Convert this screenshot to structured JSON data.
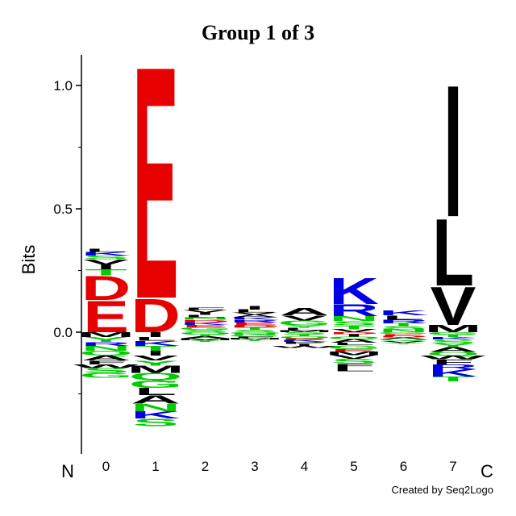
{
  "chart_data": {
    "type": "sequence-logo",
    "title": "Group 1 of 3",
    "ylabel": "Bits",
    "ylim": [
      -0.5,
      1.12
    ],
    "yticks": [
      0.0,
      0.5,
      1.0
    ],
    "ytick_labels": [
      "0.0",
      "0.5",
      "1.0"
    ],
    "positions": [
      "0",
      "1",
      "2",
      "3",
      "4",
      "5",
      "6",
      "7"
    ],
    "n_terminus_label": "N",
    "c_terminus_label": "C",
    "credit": "Created by Seq2Logo",
    "colors": {
      "acidic": "#e60000",
      "basic": "#0000e6",
      "polar": "#00cc00",
      "hydrophobic": "#000000",
      "other": "#800080"
    },
    "columns": [
      {
        "position": "0",
        "positive": [
          {
            "letter": "E",
            "bits": 0.13
          },
          {
            "letter": "D",
            "bits": 0.1
          },
          {
            "letter": "T",
            "bits": 0.025
          },
          {
            "letter": "I",
            "bits": 0.02
          },
          {
            "letter": "V",
            "bits": 0.02
          },
          {
            "letter": "S",
            "bits": 0.015
          },
          {
            "letter": "K",
            "bits": 0.015
          },
          {
            "letter": "L",
            "bits": 0.012
          }
        ],
        "negative": [
          {
            "letter": "M",
            "bits": 0.02
          },
          {
            "letter": "Y",
            "bits": 0.02
          },
          {
            "letter": "R",
            "bits": 0.015
          },
          {
            "letter": "N",
            "bits": 0.02
          },
          {
            "letter": "Q",
            "bits": 0.02
          },
          {
            "letter": "A",
            "bits": 0.02
          },
          {
            "letter": "F",
            "bits": 0.015
          },
          {
            "letter": "W",
            "bits": 0.015
          },
          {
            "letter": "S",
            "bits": 0.02
          },
          {
            "letter": "G",
            "bits": 0.02
          }
        ]
      },
      {
        "position": "1",
        "positive": [
          {
            "letter": "D",
            "bits": 0.14
          },
          {
            "letter": "E",
            "bits": 0.97
          }
        ],
        "negative": [
          {
            "letter": "I",
            "bits": 0.02
          },
          {
            "letter": "L",
            "bits": 0.015
          },
          {
            "letter": "K",
            "bits": 0.02
          },
          {
            "letter": "T",
            "bits": 0.02
          },
          {
            "letter": "I",
            "bits": 0.02
          },
          {
            "letter": "V",
            "bits": 0.02
          },
          {
            "letter": "Y",
            "bits": 0.02
          },
          {
            "letter": "M",
            "bits": 0.03
          },
          {
            "letter": "Q",
            "bits": 0.03
          },
          {
            "letter": "G",
            "bits": 0.03
          },
          {
            "letter": "L",
            "bits": 0.03
          },
          {
            "letter": "A",
            "bits": 0.035
          },
          {
            "letter": "N",
            "bits": 0.03
          },
          {
            "letter": "K",
            "bits": 0.03
          },
          {
            "letter": "S",
            "bits": 0.03
          }
        ]
      },
      {
        "position": "2",
        "positive": [
          {
            "letter": "S",
            "bits": 0.01
          },
          {
            "letter": "G",
            "bits": 0.01
          },
          {
            "letter": "E",
            "bits": 0.01
          },
          {
            "letter": "K",
            "bits": 0.01
          },
          {
            "letter": "D",
            "bits": 0.01
          },
          {
            "letter": "N",
            "bits": 0.01
          },
          {
            "letter": "L",
            "bits": 0.01
          },
          {
            "letter": "I",
            "bits": 0.01
          },
          {
            "letter": "V",
            "bits": 0.01
          },
          {
            "letter": "F",
            "bits": 0.01
          }
        ],
        "negative": [
          {
            "letter": "Q",
            "bits": 0.008
          },
          {
            "letter": "T",
            "bits": 0.008
          },
          {
            "letter": "A",
            "bits": 0.008
          },
          {
            "letter": "M",
            "bits": 0.008
          },
          {
            "letter": "Y",
            "bits": 0.008
          }
        ]
      },
      {
        "position": "3",
        "positive": [
          {
            "letter": "S",
            "bits": 0.01
          },
          {
            "letter": "T",
            "bits": 0.01
          },
          {
            "letter": "D",
            "bits": 0.01
          },
          {
            "letter": "E",
            "bits": 0.01
          },
          {
            "letter": "R",
            "bits": 0.01
          },
          {
            "letter": "K",
            "bits": 0.01
          },
          {
            "letter": "A",
            "bits": 0.01
          },
          {
            "letter": "V",
            "bits": 0.01
          },
          {
            "letter": "L",
            "bits": 0.012
          },
          {
            "letter": "I",
            "bits": 0.015
          }
        ],
        "negative": [
          {
            "letter": "Q",
            "bits": 0.006
          },
          {
            "letter": "N",
            "bits": 0.006
          },
          {
            "letter": "G",
            "bits": 0.006
          },
          {
            "letter": "F",
            "bits": 0.006
          },
          {
            "letter": "M",
            "bits": 0.006
          },
          {
            "letter": "Y",
            "bits": 0.006
          }
        ]
      },
      {
        "position": "4",
        "positive": [
          {
            "letter": "M",
            "bits": 0.008
          },
          {
            "letter": "L",
            "bits": 0.01
          },
          {
            "letter": "Y",
            "bits": 0.01
          },
          {
            "letter": "G",
            "bits": 0.02
          },
          {
            "letter": "V",
            "bits": 0.02
          },
          {
            "letter": "A",
            "bits": 0.03
          }
        ],
        "negative": [
          {
            "letter": "S",
            "bits": 0.008
          },
          {
            "letter": "T",
            "bits": 0.008
          },
          {
            "letter": "Q",
            "bits": 0.008
          },
          {
            "letter": "E",
            "bits": 0.008
          },
          {
            "letter": "K",
            "bits": 0.008
          },
          {
            "letter": "P",
            "bits": 0.008
          },
          {
            "letter": "I",
            "bits": 0.008
          },
          {
            "letter": "W",
            "bits": 0.008
          }
        ]
      },
      {
        "position": "5",
        "positive": [
          {
            "letter": "V",
            "bits": 0.012
          },
          {
            "letter": "T",
            "bits": 0.015
          },
          {
            "letter": "S",
            "bits": 0.018
          },
          {
            "letter": "N",
            "bits": 0.02
          },
          {
            "letter": "R",
            "bits": 0.05
          },
          {
            "letter": "K",
            "bits": 0.11
          }
        ],
        "negative": [
          {
            "letter": "D",
            "bits": 0.008
          },
          {
            "letter": "I",
            "bits": 0.01
          },
          {
            "letter": "Q",
            "bits": 0.01
          },
          {
            "letter": "A",
            "bits": 0.015
          },
          {
            "letter": "L",
            "bits": 0.01
          },
          {
            "letter": "G",
            "bits": 0.015
          },
          {
            "letter": "E",
            "bits": 0.01
          },
          {
            "letter": "M",
            "bits": 0.015
          },
          {
            "letter": "V",
            "bits": 0.015
          },
          {
            "letter": "S",
            "bits": 0.02
          },
          {
            "letter": "F",
            "bits": 0.015
          },
          {
            "letter": "L",
            "bits": 0.015
          }
        ]
      },
      {
        "position": "6",
        "positive": [
          {
            "letter": "N",
            "bits": 0.012
          },
          {
            "letter": "S",
            "bits": 0.012
          },
          {
            "letter": "T",
            "bits": 0.012
          },
          {
            "letter": "R",
            "bits": 0.015
          },
          {
            "letter": "L",
            "bits": 0.018
          },
          {
            "letter": "K",
            "bits": 0.02
          }
        ],
        "negative": [
          {
            "letter": "G",
            "bits": 0.007
          },
          {
            "letter": "E",
            "bits": 0.007
          },
          {
            "letter": "D",
            "bits": 0.007
          },
          {
            "letter": "A",
            "bits": 0.007
          },
          {
            "letter": "Q",
            "bits": 0.007
          },
          {
            "letter": "V",
            "bits": 0.007
          },
          {
            "letter": "Y",
            "bits": 0.007
          }
        ]
      },
      {
        "position": "7",
        "positive": [
          {
            "letter": "M",
            "bits": 0.03
          },
          {
            "letter": "V",
            "bits": 0.16
          },
          {
            "letter": "L",
            "bits": 0.28
          },
          {
            "letter": "I",
            "bits": 0.55
          }
        ],
        "negative": [
          {
            "letter": "G",
            "bits": 0.01
          },
          {
            "letter": "T",
            "bits": 0.01
          },
          {
            "letter": "K",
            "bits": 0.01
          },
          {
            "letter": "S",
            "bits": 0.015
          },
          {
            "letter": "Y",
            "bits": 0.015
          },
          {
            "letter": "A",
            "bits": 0.02
          },
          {
            "letter": "Q",
            "bits": 0.015
          },
          {
            "letter": "W",
            "bits": 0.015
          },
          {
            "letter": "F",
            "bits": 0.02
          },
          {
            "letter": "R",
            "bits": 0.02
          },
          {
            "letter": "K",
            "bits": 0.03
          },
          {
            "letter": "T",
            "bits": 0.02
          }
        ]
      }
    ]
  }
}
